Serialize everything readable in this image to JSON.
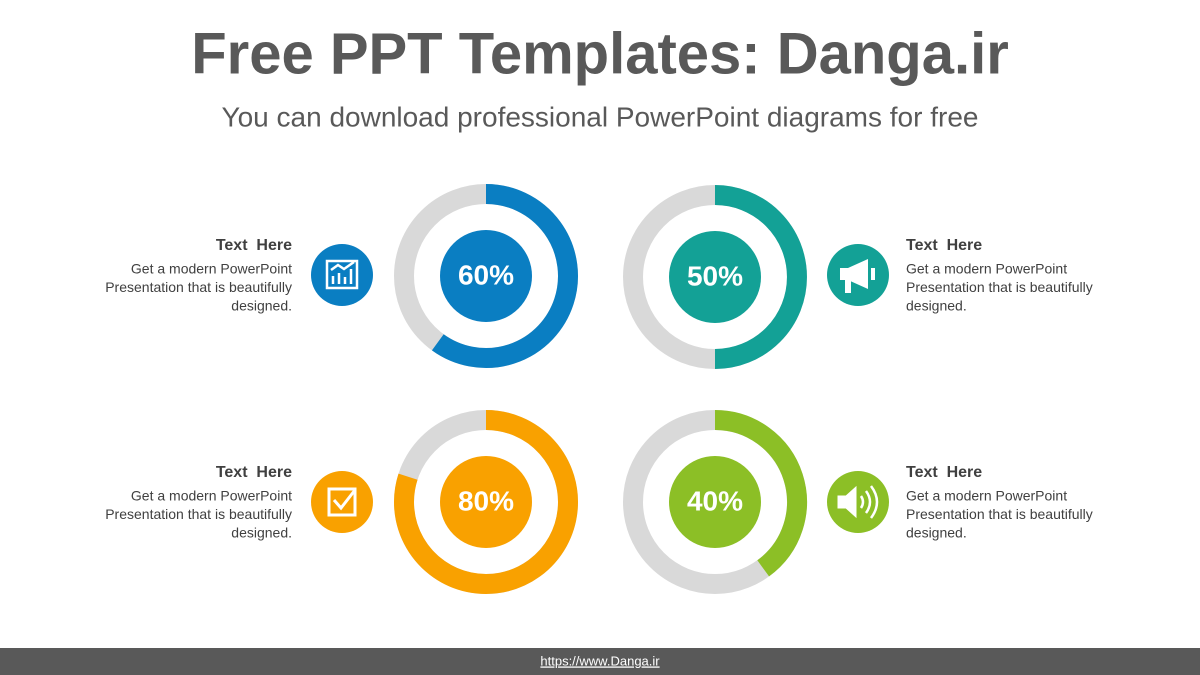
{
  "header": {
    "title": "Free PPT Templates: Danga.ir",
    "subtitle": "You can download professional PowerPoint diagrams for free"
  },
  "chart_data": [
    {
      "type": "donut",
      "values": [
        60
      ],
      "value_labels": [
        "60%"
      ],
      "color": "#0a7ec2"
    },
    {
      "type": "donut",
      "values": [
        50
      ],
      "value_labels": [
        "50%"
      ],
      "color": "#13a196"
    },
    {
      "type": "donut",
      "values": [
        80
      ],
      "value_labels": [
        "80%"
      ],
      "color": "#f9a100"
    },
    {
      "type": "donut",
      "values": [
        40
      ],
      "value_labels": [
        "40%"
      ],
      "color": "#8cbf26"
    }
  ],
  "items": [
    {
      "heading": "Text  Here",
      "lines": [
        "Get a modern PowerPoint",
        "Presentation that is beautifully",
        "designed."
      ]
    },
    {
      "heading": "Text  Here",
      "lines": [
        "Get a modern PowerPoint",
        "Presentation that is beautifully",
        "designed."
      ]
    },
    {
      "heading": "Text  Here",
      "lines": [
        "Get a modern PowerPoint",
        "Presentation that is beautifully",
        "designed."
      ]
    },
    {
      "heading": "Text  Here",
      "lines": [
        "Get a modern PowerPoint",
        "Presentation that is beautifully",
        "designed."
      ]
    }
  ],
  "footer": {
    "url": "https://www.Danga.ir"
  }
}
